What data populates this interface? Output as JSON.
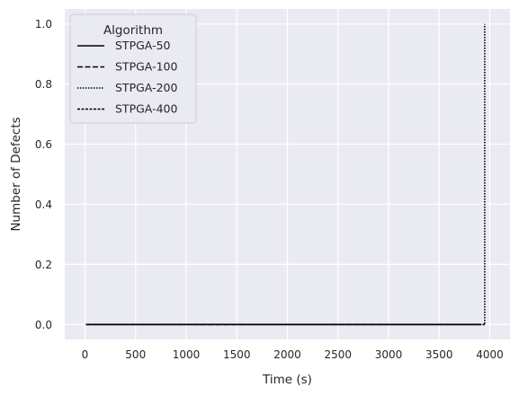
{
  "chart_data": {
    "type": "line",
    "title": "",
    "xlabel": "Time (s)",
    "ylabel": "Number of Defects",
    "xlim": [
      -200,
      4200
    ],
    "ylim": [
      -0.05,
      1.05
    ],
    "xticks": [
      0,
      500,
      1000,
      1500,
      2000,
      2500,
      3000,
      3500,
      4000
    ],
    "yticks": [
      0.0,
      0.2,
      0.4,
      0.6,
      0.8,
      1.0
    ],
    "xtick_labels": [
      "0",
      "500",
      "1000",
      "1500",
      "2000",
      "2500",
      "3000",
      "3500",
      "4000"
    ],
    "ytick_labels": [
      "0.0",
      "0.2",
      "0.4",
      "0.6",
      "0.8",
      "1.0"
    ],
    "grid": true,
    "background": "#eaeaf2",
    "grid_color": "#ffffff",
    "legend": {
      "title": "Algorithm",
      "placement": "top-left"
    },
    "series": [
      {
        "name": "STPGA-50",
        "style": "solid",
        "color": "#000000",
        "x": [
          10,
          3900
        ],
        "y": [
          0,
          0
        ]
      },
      {
        "name": "STPGA-100",
        "style": "dashed",
        "color": "#000000",
        "x": [
          10,
          3950
        ],
        "y": [
          0,
          0
        ]
      },
      {
        "name": "STPGA-200",
        "style": "dotted",
        "color": "#000000",
        "x": [
          10,
          3950,
          3950
        ],
        "y": [
          0,
          0,
          1
        ]
      },
      {
        "name": "STPGA-400",
        "style": "dashdense",
        "color": "#000000",
        "x": [
          10,
          3950
        ],
        "y": [
          0,
          0
        ]
      }
    ]
  }
}
